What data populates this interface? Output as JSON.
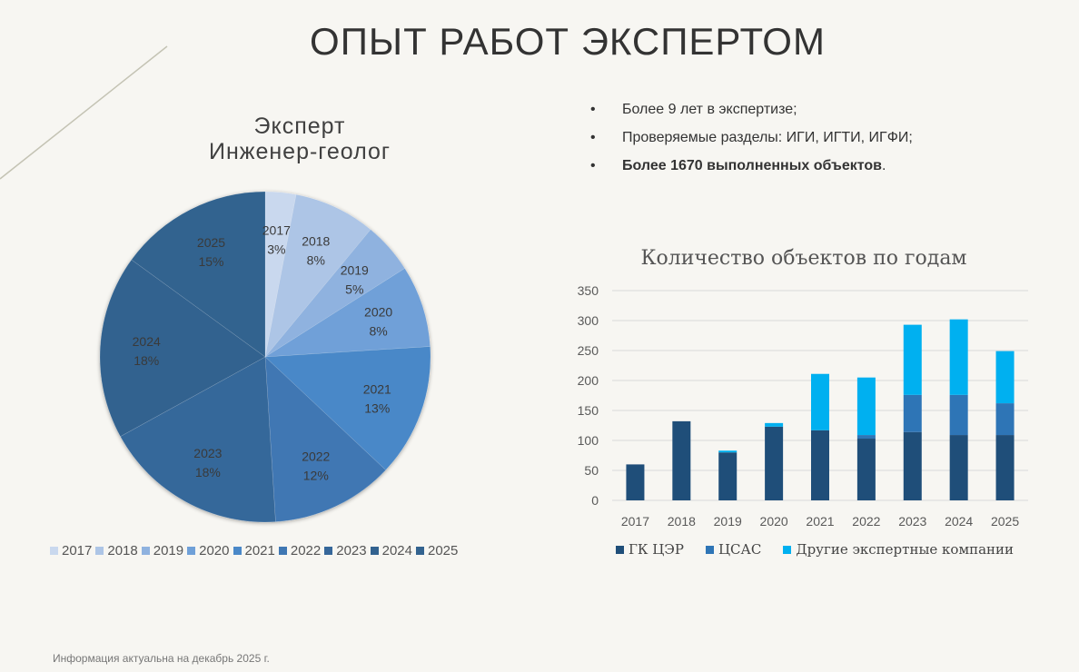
{
  "page": {
    "title": "ОПЫТ РАБОТ ЭКСПЕРТОМ",
    "footer": "Информация актуальна на декабрь 2025 г."
  },
  "bullets": {
    "items": [
      {
        "text": "Более 9 лет в экспертизе;"
      },
      {
        "text": "Проверяемые разделы: ИГИ, ИГТИ, ИГФИ;"
      },
      {
        "bold": "Более 1670 выполненных объектов",
        "text": "."
      }
    ]
  },
  "chart_data": [
    {
      "type": "pie",
      "title_line1": "Эксперт",
      "title_line2": "Инженер-геолог",
      "categories": [
        "2017",
        "2018",
        "2019",
        "2020",
        "2021",
        "2022",
        "2023",
        "2024",
        "2025"
      ],
      "values": [
        3,
        8,
        5,
        8,
        13,
        12,
        18,
        18,
        15
      ],
      "labels": [
        "3%",
        "8%",
        "5%",
        "8%",
        "13%",
        "12%",
        "18%",
        "18%",
        "15%"
      ],
      "colors": [
        "#c9d8ee",
        "#adc5e6",
        "#8fb2df",
        "#6fa0d8",
        "#4a88c8",
        "#3f77b3",
        "#36679a",
        "#32628f",
        "#33638f"
      ],
      "legend": "bottom"
    },
    {
      "type": "bar",
      "stacked": true,
      "title": "Количество объектов по годам",
      "categories": [
        "2017",
        "2018",
        "2019",
        "2020",
        "2021",
        "2022",
        "2023",
        "2024",
        "2025"
      ],
      "series": [
        {
          "name": "ГК ЦЭР",
          "color": "#1f4e79",
          "values": [
            60,
            132,
            80,
            123,
            117,
            103,
            114,
            109,
            109
          ]
        },
        {
          "name": "ЦСАС",
          "color": "#2e75b6",
          "values": [
            0,
            0,
            0,
            0,
            0,
            6,
            62,
            67,
            53
          ]
        },
        {
          "name": "Другие экспертные компании",
          "color": "#00b0f0",
          "values": [
            0,
            0,
            3,
            6,
            94,
            96,
            117,
            126,
            87
          ]
        }
      ],
      "yticks": [
        "0",
        "50",
        "100",
        "150",
        "200",
        "250",
        "300",
        "350"
      ],
      "ylim": [
        0,
        350
      ],
      "grid": true,
      "legend": "bottom"
    }
  ]
}
